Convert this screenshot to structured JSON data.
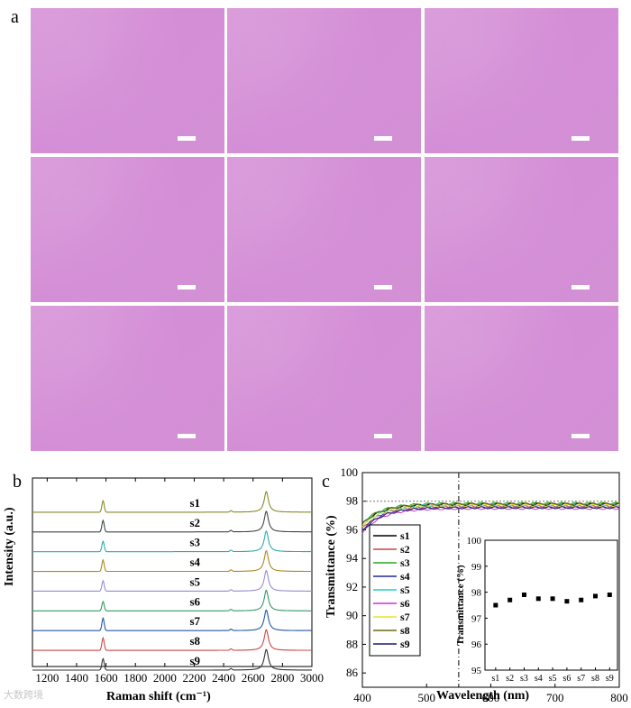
{
  "figure": {
    "panels": [
      "a",
      "b",
      "c"
    ],
    "watermark": "大数跨境",
    "micrographs": {
      "count": 9,
      "color": "#d494d6"
    }
  },
  "chart_data": [
    {
      "type": "line",
      "panel": "b",
      "xlabel": "Raman shift (cm⁻¹)",
      "ylabel": "Intensity (a.u.)",
      "xlim": [
        1100,
        3000
      ],
      "xticks": [
        1200,
        1400,
        1600,
        1800,
        2000,
        2200,
        2400,
        2600,
        2800,
        3000
      ],
      "peaks": {
        "G": 1580,
        "D_prime": 2450,
        "2D": 2690
      },
      "series": [
        {
          "name": "s1",
          "color": "#8a8a2a",
          "G": 0.55,
          "twoD": 1.0
        },
        {
          "name": "s2",
          "color": "#444444",
          "G": 0.55,
          "twoD": 1.0
        },
        {
          "name": "s3",
          "color": "#33aaaa",
          "G": 0.5,
          "twoD": 1.0
        },
        {
          "name": "s4",
          "color": "#aa8822",
          "G": 0.55,
          "twoD": 1.0
        },
        {
          "name": "s5",
          "color": "#9a8ad0",
          "G": 0.5,
          "twoD": 1.0
        },
        {
          "name": "s6",
          "color": "#339966",
          "G": 0.45,
          "twoD": 1.0
        },
        {
          "name": "s7",
          "color": "#2255aa",
          "G": 0.6,
          "twoD": 1.0
        },
        {
          "name": "s8",
          "color": "#cc4444",
          "G": 0.6,
          "twoD": 1.0
        },
        {
          "name": "s9",
          "color": "#333333",
          "G": 0.55,
          "twoD": 1.0
        }
      ]
    },
    {
      "type": "line",
      "panel": "c",
      "xlabel": "Wavelength (nm)",
      "ylabel": "Transmittance (%)",
      "xlim": [
        400,
        800
      ],
      "ylim": [
        85,
        100
      ],
      "xticks": [
        400,
        500,
        600,
        700,
        800
      ],
      "yticks": [
        86,
        88,
        90,
        92,
        94,
        96,
        98,
        100
      ],
      "reference_line_y": 98,
      "vertical_marker_x": 550,
      "legend": "left",
      "series": [
        {
          "name": "s1",
          "color": "#000000"
        },
        {
          "name": "s2",
          "color": "#cc4444"
        },
        {
          "name": "s3",
          "color": "#22aa22"
        },
        {
          "name": "s4",
          "color": "#1f2a9a"
        },
        {
          "name": "s5",
          "color": "#22cccc"
        },
        {
          "name": "s6",
          "color": "#cc33cc"
        },
        {
          "name": "s7",
          "color": "#e8e033"
        },
        {
          "name": "s8",
          "color": "#6b6b10"
        },
        {
          "name": "s9",
          "color": "#1a1a77"
        }
      ],
      "inset": {
        "type": "scatter",
        "ylabel": "Transmittance (%)",
        "ylim": [
          95,
          100
        ],
        "yticks": [
          95,
          96,
          97,
          98,
          99,
          100
        ],
        "categories": [
          "s1",
          "s2",
          "s3",
          "s4",
          "s5",
          "s6",
          "s7",
          "s8",
          "s9"
        ],
        "values": [
          97.5,
          97.7,
          97.9,
          97.75,
          97.75,
          97.65,
          97.7,
          97.85,
          97.9
        ]
      }
    }
  ]
}
